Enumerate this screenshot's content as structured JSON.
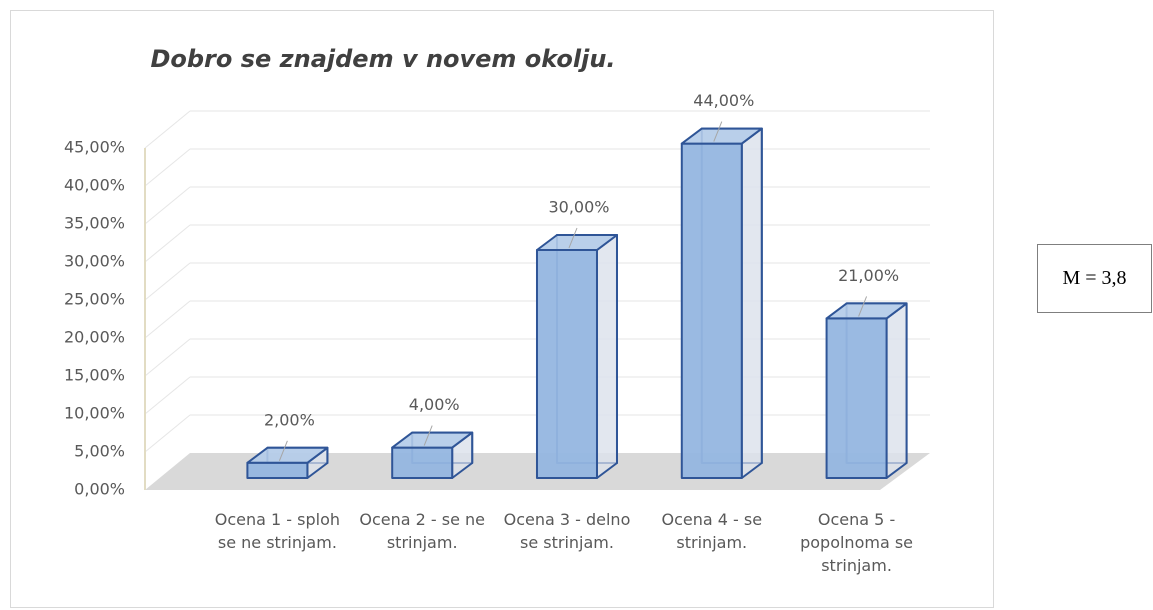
{
  "chart_data": {
    "type": "bar3d",
    "title": "Dobro se znajdem v novem okolju.",
    "categories": [
      "Ocena 1 - sploh se ne strinjam.",
      "Ocena 2 - se ne strinjam.",
      "Ocena 3 - delno se strinjam.",
      "Ocena 4 - se strinjam.",
      "Ocena 5 - popolnoma se strinjam."
    ],
    "values": [
      2,
      4,
      30,
      44,
      21
    ],
    "value_labels": [
      "2,00%",
      "4,00%",
      "30,00%",
      "44,00%",
      "21,00%"
    ],
    "color": "#95b6e0",
    "ylim": [
      0,
      45
    ],
    "yticks": [
      {
        "value": 0,
        "label": "0,00%"
      },
      {
        "value": 5,
        "label": "5,00%"
      },
      {
        "value": 10,
        "label": "10,00%"
      },
      {
        "value": 15,
        "label": "15,00%"
      },
      {
        "value": 20,
        "label": "20,00%"
      },
      {
        "value": 25,
        "label": "25,00%"
      },
      {
        "value": 30,
        "label": "30,00%"
      },
      {
        "value": 35,
        "label": "35,00%"
      },
      {
        "value": 40,
        "label": "40,00%"
      },
      {
        "value": 45,
        "label": "45,00%"
      }
    ],
    "grid": true,
    "annotation": "M = 3,8"
  }
}
